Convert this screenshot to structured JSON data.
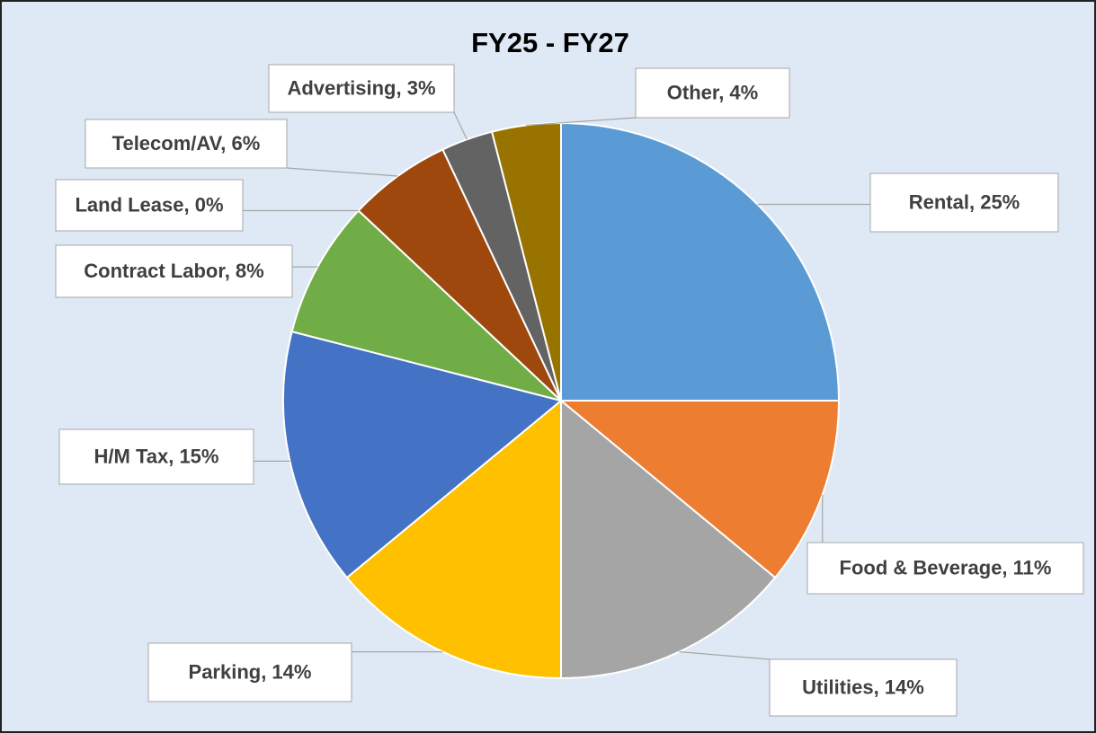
{
  "chart_data": {
    "type": "pie",
    "title": "FY25 - FY27",
    "values": [
      25,
      11,
      14,
      14,
      15,
      8,
      0,
      6,
      3,
      4
    ],
    "value_labels": [
      "Rental, 25%",
      "Food & Beverage, 11%",
      "Utilities, 14%",
      "Parking, 14%",
      "H/M Tax, 15%",
      "Contract Labor, 8%",
      "Land Lease, 0%",
      "Telecom/AV, 6%",
      "Advertising, 3%",
      "Other, 4%"
    ],
    "colors": [
      "#5b9bd5",
      "#ed7d31",
      "#a5a5a5",
      "#ffc000",
      "#4472c4",
      "#70ad47",
      "#264478",
      "#9e480e",
      "#636363",
      "#997300"
    ]
  }
}
